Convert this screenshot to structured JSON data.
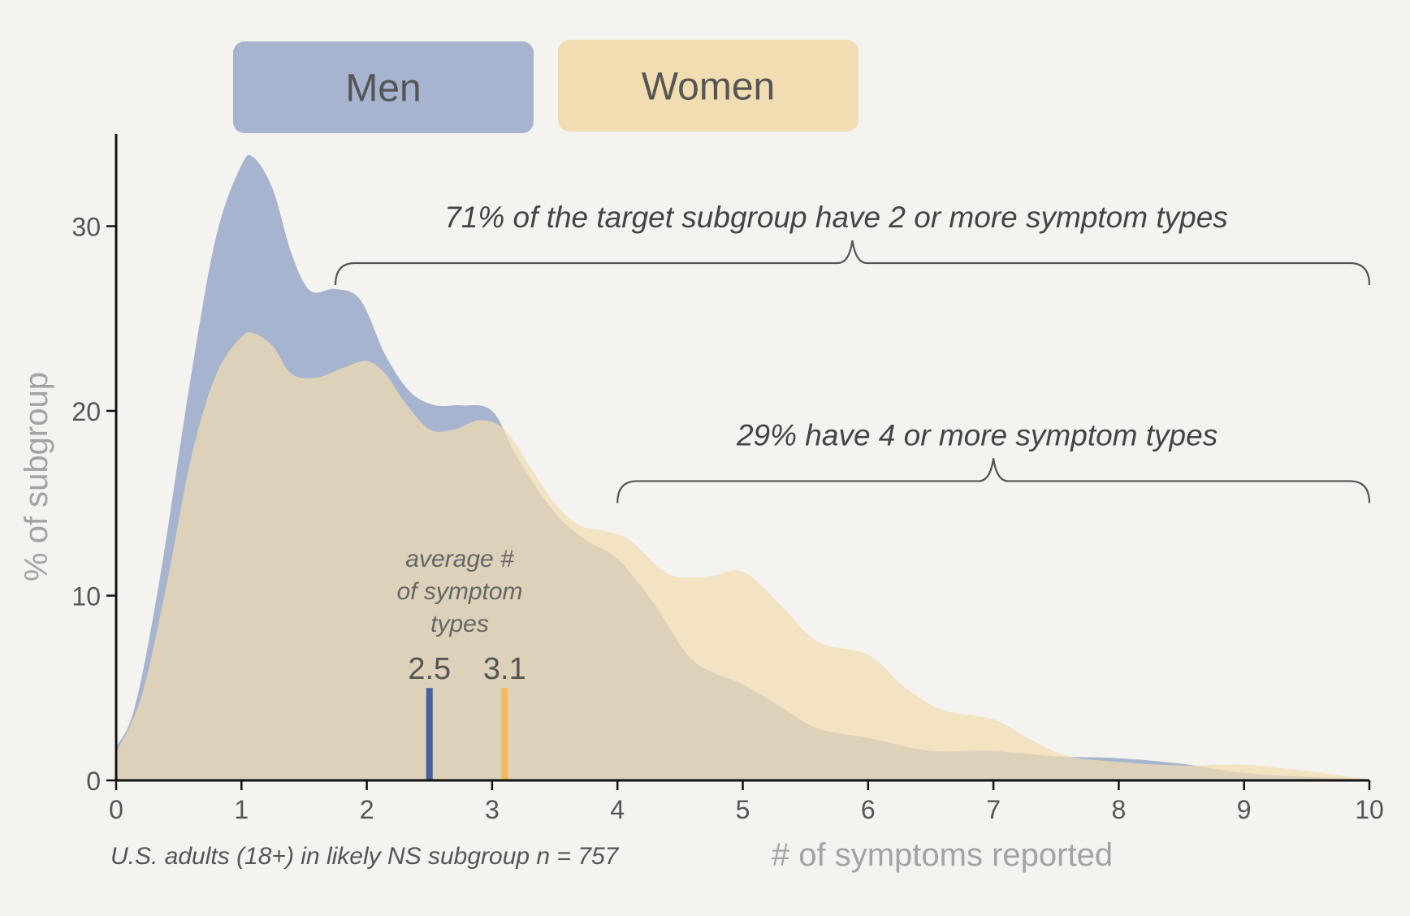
{
  "chart_data": {
    "type": "area",
    "xlabel": "# of symptoms reported",
    "ylabel": "% of subgroup",
    "xlim": [
      0,
      10
    ],
    "ylim": [
      0,
      35
    ],
    "xticks": [
      "0",
      "1",
      "2",
      "3",
      "4",
      "5",
      "6",
      "7",
      "8",
      "9",
      "10"
    ],
    "yticks": [
      "0",
      "10",
      "20",
      "30"
    ],
    "grid": false,
    "legend": {
      "placement": "top",
      "items": [
        {
          "name": "Men",
          "color": "#a7b4cf"
        },
        {
          "name": "Women",
          "color": "#f2ddb2"
        }
      ]
    },
    "series": [
      {
        "name": "Men",
        "color": "#a7b4cf",
        "x": [
          0,
          0.15,
          0.35,
          0.6,
          0.8,
          1.0,
          1.1,
          1.25,
          1.4,
          1.55,
          1.75,
          1.95,
          2.15,
          2.35,
          2.55,
          2.75,
          3.0,
          3.2,
          3.5,
          3.75,
          4.0,
          4.3,
          4.6,
          5.0,
          5.3,
          5.6,
          6.0,
          6.5,
          7.0,
          7.5,
          8.0,
          8.5,
          9.0,
          9.5,
          10.0
        ],
        "y": [
          1.8,
          4.0,
          11.0,
          22.0,
          29.5,
          33.3,
          33.7,
          32.0,
          28.5,
          26.5,
          26.6,
          26.0,
          23.0,
          21.0,
          20.3,
          20.3,
          20.0,
          17.5,
          14.5,
          13.0,
          12.0,
          9.5,
          6.5,
          5.2,
          4.0,
          2.8,
          2.3,
          1.6,
          1.6,
          1.3,
          1.2,
          0.9,
          0.4,
          0.2,
          0.05
        ]
      },
      {
        "name": "Women",
        "color": "#f2ddb2",
        "x": [
          0,
          0.2,
          0.4,
          0.6,
          0.8,
          1.0,
          1.1,
          1.25,
          1.4,
          1.6,
          1.8,
          2.0,
          2.15,
          2.3,
          2.5,
          2.7,
          2.9,
          3.1,
          3.3,
          3.5,
          3.7,
          3.9,
          4.1,
          4.4,
          4.7,
          5.0,
          5.3,
          5.6,
          6.0,
          6.3,
          6.6,
          7.0,
          7.3,
          7.6,
          8.0,
          8.5,
          9.0,
          9.5,
          10.0
        ],
        "y": [
          1.5,
          4.5,
          10.5,
          17.5,
          22.0,
          24.0,
          24.2,
          23.5,
          22.0,
          21.8,
          22.3,
          22.7,
          22.0,
          20.5,
          19.0,
          19.0,
          19.5,
          19.0,
          17.0,
          15.0,
          13.8,
          13.5,
          13.0,
          11.2,
          11.0,
          11.3,
          9.5,
          7.5,
          6.8,
          5.0,
          3.8,
          3.3,
          2.2,
          1.3,
          1.0,
          0.8,
          0.85,
          0.5,
          0.05
        ]
      }
    ],
    "means": {
      "title": "average #\nof symptom\ntypes",
      "items": [
        {
          "name": "Men",
          "value": 2.5,
          "label": "2.5",
          "color": "#4462a0"
        },
        {
          "name": "Women",
          "value": 3.1,
          "label": "3.1",
          "color": "#efbb5c"
        }
      ],
      "bar_height": 5
    },
    "annotations": [
      {
        "text": "71% of the target subgroup have 2 or more symptom types",
        "from": 1.75,
        "to": 10,
        "y": 28
      },
      {
        "text": "29% have 4 or more symptom types",
        "from": 4,
        "to": 10,
        "y": 16.2
      }
    ],
    "footnote": "U.S. adults (18+) in likely NS subgroup n = 757"
  }
}
